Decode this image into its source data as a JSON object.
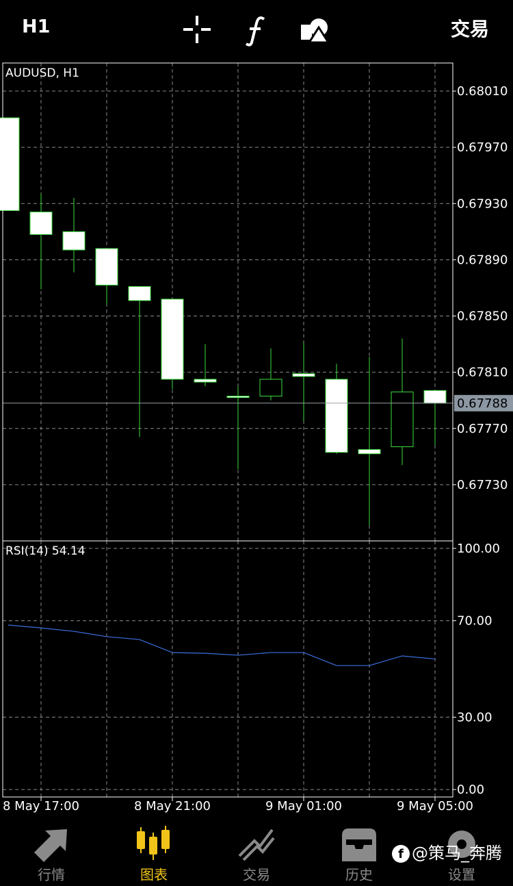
{
  "header": {
    "timeframe": "H1",
    "trade": "交易"
  },
  "chart_data": [
    {
      "type": "candlestick",
      "title": "AUDUSD, H1",
      "categories": [
        null,
        "8 May 17:00",
        null,
        null,
        null,
        "8 May 21:00",
        null,
        null,
        null,
        "9 May 01:00",
        null,
        null,
        null,
        "9 May 05:00"
      ],
      "open": [
        0.67991,
        0.67924,
        0.6791,
        0.67898,
        0.67871,
        0.67862,
        0.67805,
        0.67793,
        0.67793,
        0.67809,
        0.67805,
        0.67755,
        0.67757,
        0.67797
      ],
      "high": [
        0.67991,
        0.67937,
        0.67934,
        0.67898,
        0.67871,
        0.67862,
        0.6783,
        0.678,
        0.67827,
        0.67831,
        0.67816,
        0.67821,
        0.67834,
        0.67797
      ],
      "low": [
        0.67925,
        0.67869,
        0.67881,
        0.67858,
        0.67764,
        0.67798,
        0.678,
        0.67741,
        0.6779,
        0.67775,
        0.67752,
        0.67701,
        0.67744,
        0.67758
      ],
      "close": [
        0.67925,
        0.67908,
        0.67897,
        0.67872,
        0.67861,
        0.67805,
        0.67803,
        0.67792,
        0.67805,
        0.67807,
        0.67753,
        0.67752,
        0.67796,
        0.67788
      ],
      "up_color": "#000000",
      "down_color": "#ffffff",
      "wick_color": "#3ddc3d",
      "ylim": [
        0.6769,
        0.6803
      ],
      "yticks": [
        {
          "value": 0.6801,
          "label": "0.68010"
        },
        {
          "value": 0.6797,
          "label": "0.67970"
        },
        {
          "value": 0.6793,
          "label": "0.67930"
        },
        {
          "value": 0.6789,
          "label": "0.67890"
        },
        {
          "value": 0.6785,
          "label": "0.67850"
        },
        {
          "value": 0.6781,
          "label": "0.67810"
        },
        {
          "value": 0.6777,
          "label": "0.67770"
        },
        {
          "value": 0.6773,
          "label": "0.67730"
        }
      ],
      "last_price": {
        "value": 0.67788,
        "label": "0.67788"
      },
      "grid": true
    },
    {
      "type": "line",
      "title": "RSI(14) 54.14",
      "color": "#3d6fe0",
      "values": [
        68.2,
        67.0,
        65.6,
        63.4,
        62.2,
        56.8,
        56.5,
        55.7,
        56.8,
        56.8,
        51.4,
        51.4,
        55.4,
        54.14
      ],
      "ylim": [
        -3.1,
        103.1
      ],
      "yticks": [
        {
          "value": 0,
          "label": "0.00"
        },
        {
          "value": 30,
          "label": "30.00"
        },
        {
          "value": 70,
          "label": "70.00"
        },
        {
          "value": 100,
          "label": "100.00"
        }
      ],
      "grid": true
    }
  ],
  "nav": {
    "items": [
      "行情",
      "图表",
      "交易",
      "历史",
      "设置"
    ],
    "active": 1
  },
  "watermark": "@策马_奔腾"
}
